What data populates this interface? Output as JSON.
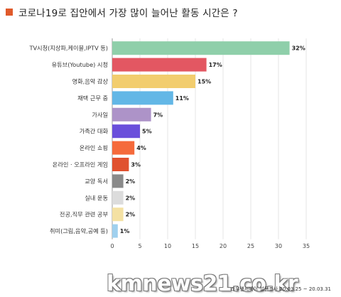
{
  "title": "코로나19로 집안에서 가장 많이 늘어난 활동 시간은 ?",
  "title_color": "#e05a2b",
  "watermark": "kmnews21.co.kr",
  "source": "리우앤서베이 설문조사 20.03.25 ~ 20.03.31",
  "chart_data": {
    "type": "bar",
    "orientation": "horizontal",
    "categories": [
      "TV시청(지상파,케이블,IPTV 등)",
      "유튜브(Youtube) 시청",
      "영화,음악 감상",
      "재택 근무 중",
      "가사일",
      "가족간 대화",
      "온라인 쇼핑",
      "온라인 · 오프라인 게임",
      "교양 독서",
      "실내 운동",
      "전공,직무 관련 공부",
      "취미(그림,음악,공예 등)"
    ],
    "values": [
      32,
      17,
      15,
      11,
      7,
      5,
      4,
      3,
      2,
      2,
      2,
      1
    ],
    "value_labels": [
      "32%",
      "17%",
      "15%",
      "11%",
      "7%",
      "5%",
      "4%",
      "3%",
      "2%",
      "2%",
      "2%",
      "1%"
    ],
    "colors": [
      "#8fcfaa",
      "#e35762",
      "#f2cd6e",
      "#63b7e6",
      "#ad93c8",
      "#6a4fdb",
      "#f56a3b",
      "#e0512f",
      "#8a8a8a",
      "#dcdcdc",
      "#f4e1a3",
      "#9fd0ee"
    ],
    "xlim": [
      0,
      35
    ],
    "xticks": [
      0,
      5,
      10,
      15,
      20,
      25,
      30,
      35
    ],
    "grid": true
  }
}
